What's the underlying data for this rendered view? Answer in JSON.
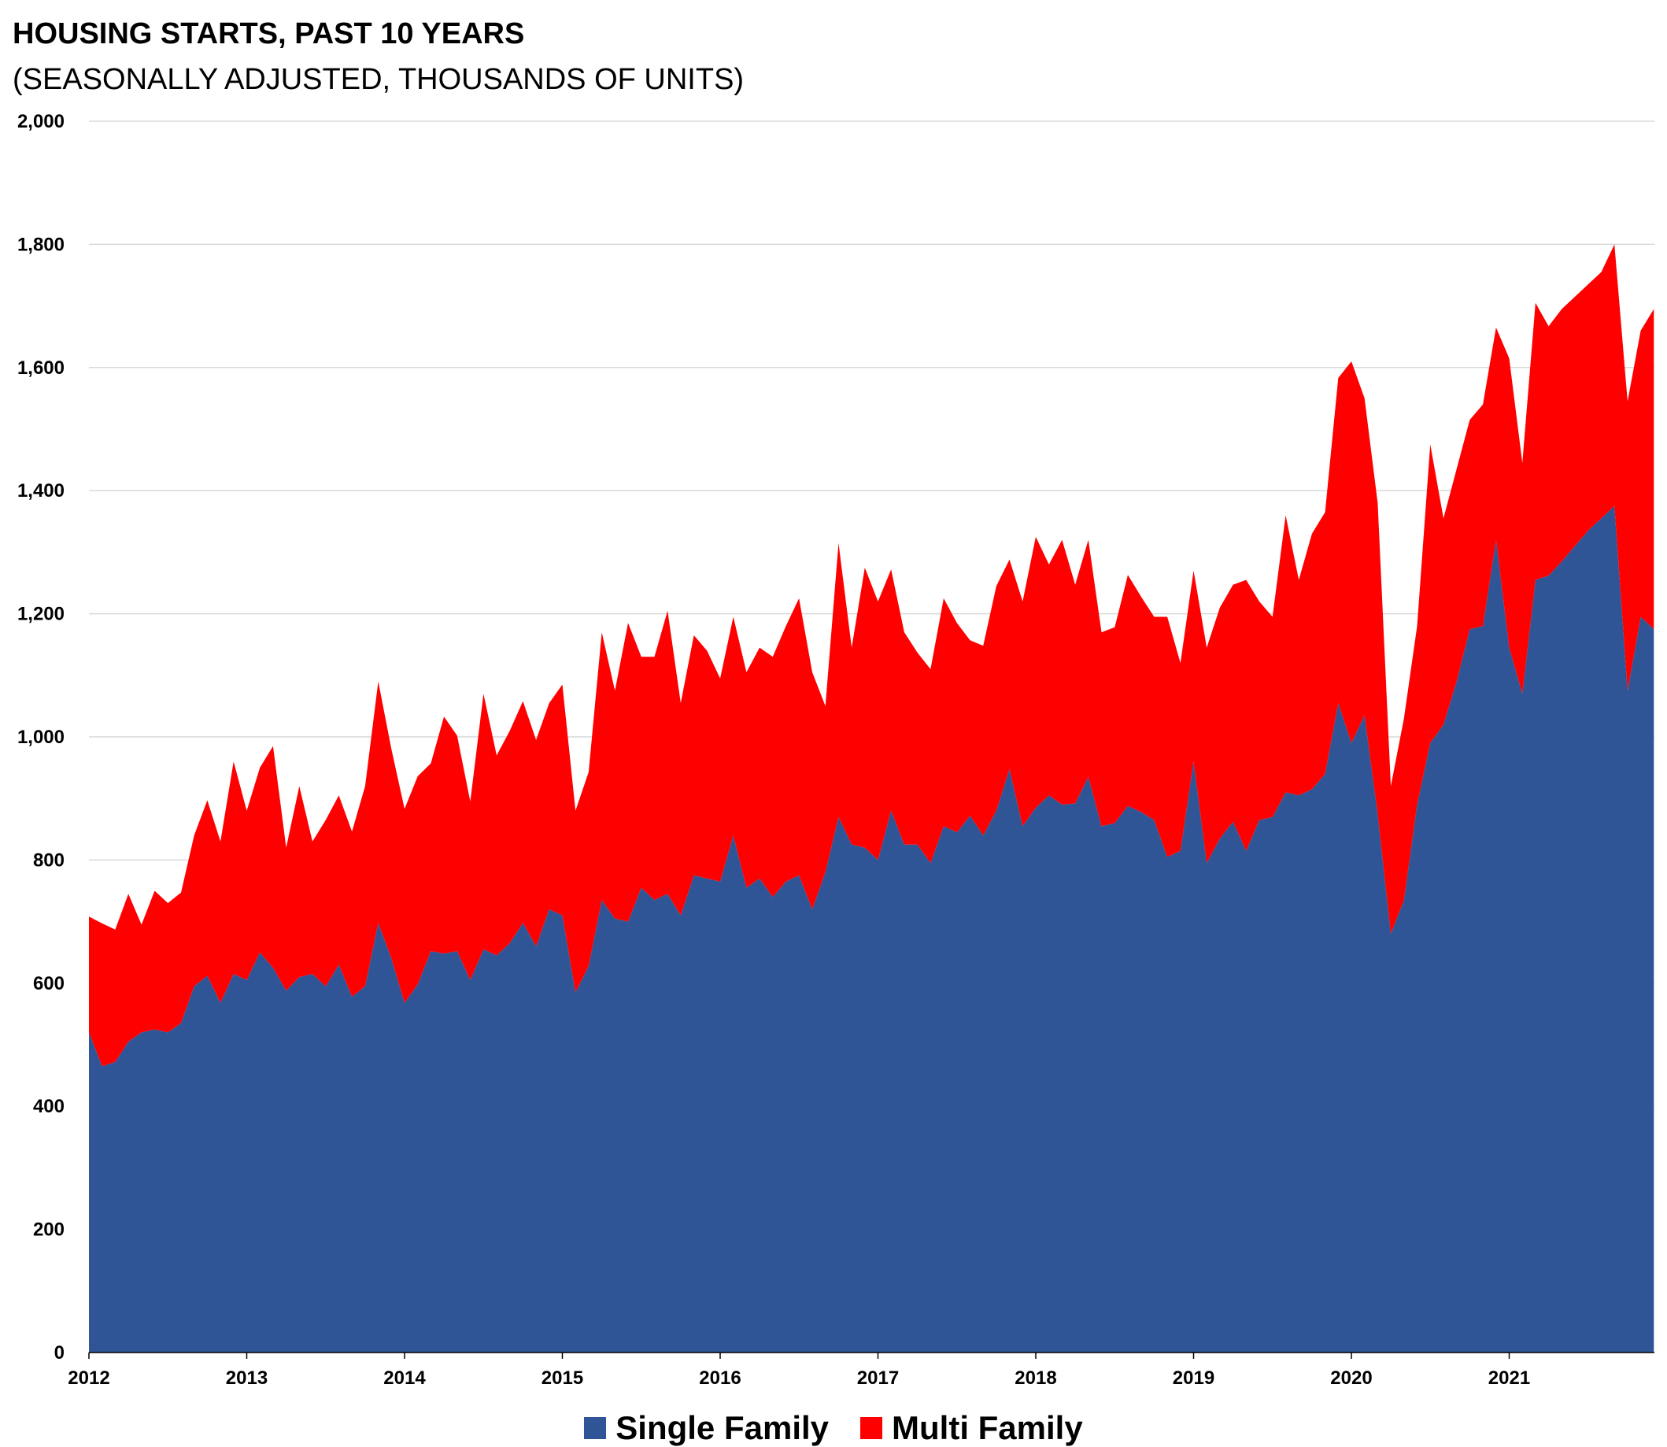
{
  "chart_data": {
    "type": "area",
    "stacked": true,
    "title": "HOUSING STARTS, PAST 10 YEARS",
    "subtitle": "(SEASONALLY ADJUSTED, THOUSANDS OF UNITS)",
    "ylim": [
      0,
      2000
    ],
    "yticks": [
      0,
      200,
      400,
      600,
      800,
      1000,
      1200,
      1400,
      1600,
      1800,
      2000
    ],
    "ytick_labels": [
      "0",
      "200",
      "400",
      "600",
      "800",
      "1,000",
      "1,200",
      "1,400",
      "1,600",
      "1,800",
      "2,000"
    ],
    "xticks": [
      "2012",
      "2013",
      "2014",
      "2015",
      "2016",
      "2017",
      "2018",
      "2019",
      "2020",
      "2021"
    ],
    "x_start": "2012-01",
    "x_end": "2021-12",
    "grid": true,
    "legend_position": "bottom",
    "series": [
      {
        "name": "Single Family",
        "color": "#2f5597",
        "values": [
          520,
          465,
          472,
          505,
          520,
          525,
          520,
          535,
          595,
          612,
          568,
          615,
          605,
          650,
          625,
          588,
          610,
          615,
          595,
          630,
          578,
          595,
          698,
          640,
          568,
          598,
          652,
          648,
          652,
          605,
          655,
          645,
          665,
          698,
          660,
          720,
          710,
          585,
          628,
          735,
          705,
          700,
          755,
          735,
          745,
          710,
          775,
          770,
          765,
          840,
          755,
          770,
          740,
          765,
          775,
          720,
          780,
          870,
          825,
          820,
          800,
          880,
          825,
          825,
          795,
          855,
          845,
          872,
          840,
          880,
          948,
          855,
          885,
          905,
          890,
          892,
          935,
          855,
          860,
          888,
          878,
          865,
          805,
          815,
          960,
          795,
          835,
          862,
          815,
          865,
          870,
          910,
          905,
          915,
          940,
          1055,
          990,
          1035,
          875,
          680,
          735,
          890,
          990,
          1020,
          1090,
          1175,
          1180,
          1320,
          1145,
          1070,
          1255,
          1262,
          1285,
          1310,
          1335,
          1355,
          1375,
          1075,
          1195,
          1175
        ]
      },
      {
        "name": "Multi Family",
        "color": "#ff0000",
        "values": [
          188,
          232,
          215,
          240,
          175,
          225,
          210,
          212,
          245,
          285,
          262,
          345,
          275,
          300,
          360,
          232,
          310,
          215,
          270,
          275,
          268,
          325,
          392,
          340,
          315,
          338,
          305,
          385,
          350,
          290,
          415,
          325,
          345,
          360,
          335,
          335,
          375,
          295,
          315,
          435,
          370,
          485,
          375,
          395,
          460,
          345,
          390,
          370,
          330,
          355,
          350,
          375,
          390,
          415,
          450,
          385,
          270,
          445,
          320,
          455,
          420,
          392,
          345,
          312,
          315,
          370,
          340,
          285,
          308,
          365,
          340,
          365,
          440,
          375,
          430,
          355,
          385,
          315,
          318,
          375,
          350,
          330,
          390,
          305,
          310,
          350,
          375,
          385,
          440,
          355,
          325,
          450,
          350,
          415,
          425,
          528,
          620,
          515,
          505,
          240,
          295,
          290,
          485,
          335,
          345,
          340,
          360,
          345,
          470,
          375,
          450,
          405,
          410,
          405,
          400,
          400,
          425,
          470,
          465,
          520
        ]
      }
    ]
  }
}
